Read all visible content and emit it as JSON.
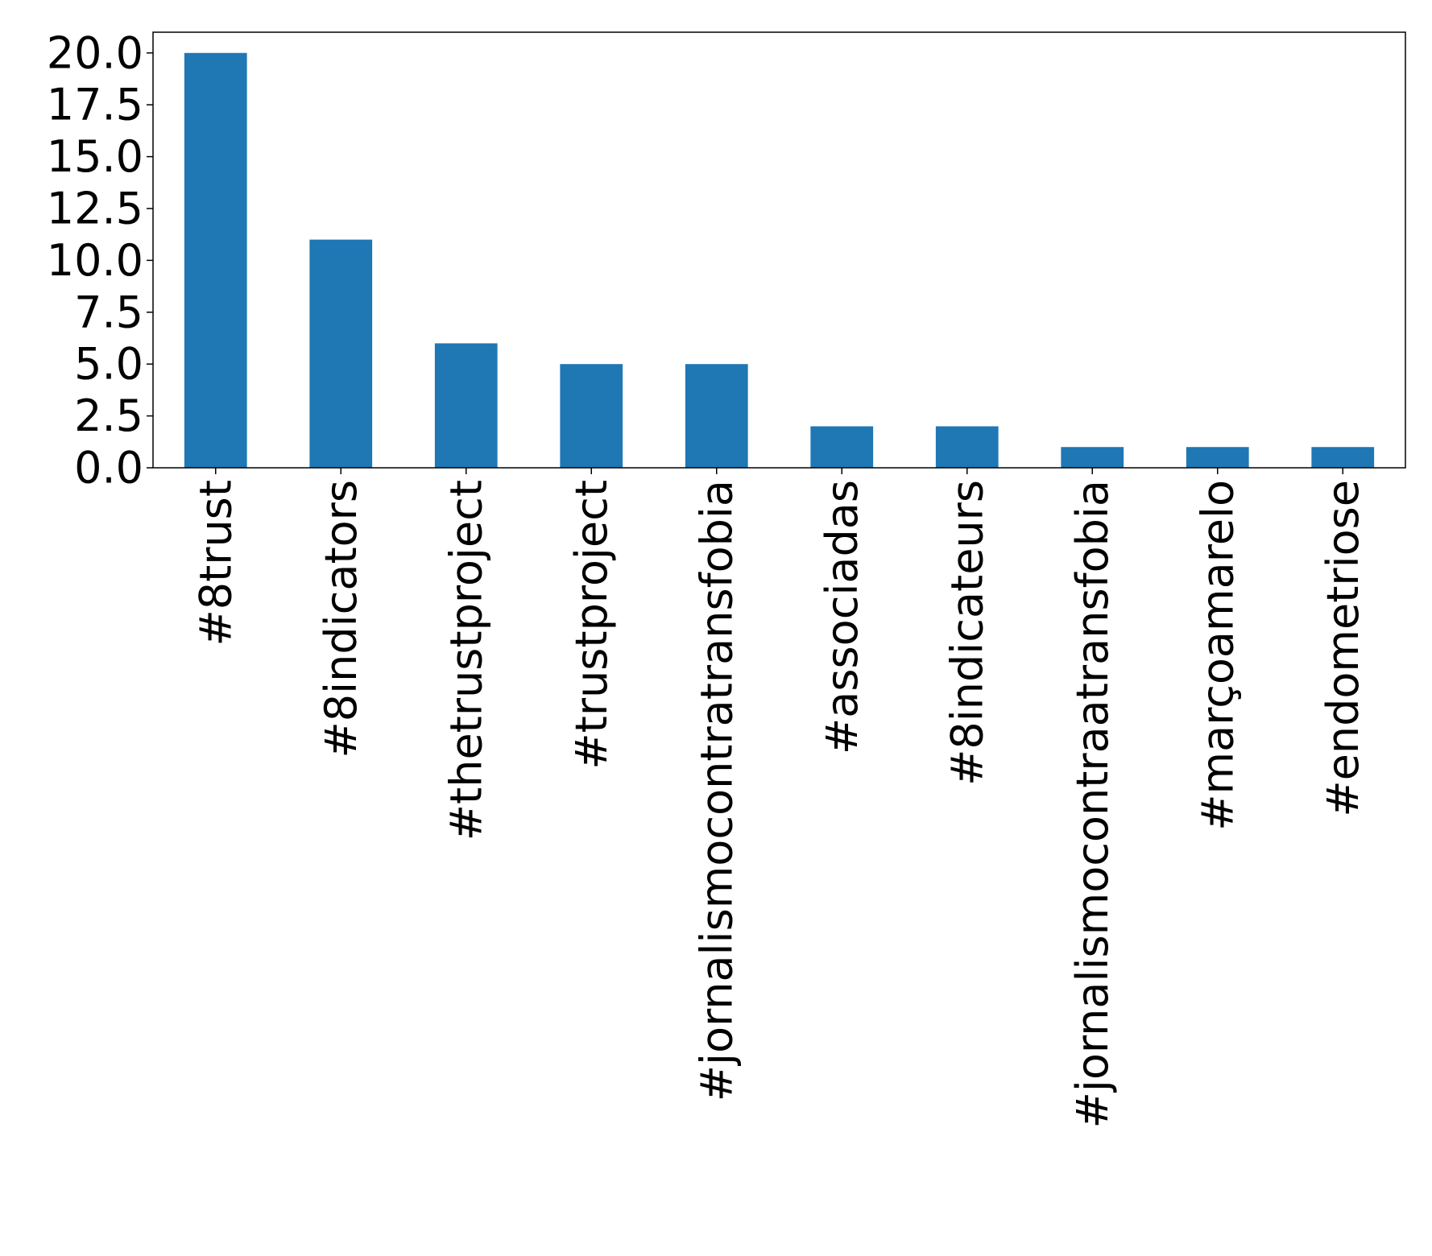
{
  "chart_data": {
    "type": "bar",
    "categories": [
      "#8trust",
      "#8indicators",
      "#thetrustproject",
      "#trustproject",
      "#jornalismocontratransfobia",
      "#associadas",
      "#8indicateurs",
      "#jornalismocontraatransfobia",
      "#marçoamarelo",
      "#endometriose"
    ],
    "values": [
      20,
      11,
      6,
      5,
      5,
      2,
      2,
      1,
      1,
      1
    ],
    "ylim": [
      0,
      21
    ],
    "yticks": [
      0.0,
      2.5,
      5.0,
      7.5,
      10.0,
      12.5,
      15.0,
      17.5,
      20.0
    ],
    "ytick_labels": [
      "0.0",
      "2.5",
      "5.0",
      "7.5",
      "10.0",
      "12.5",
      "15.0",
      "17.5",
      "20.0"
    ],
    "bar_color": "#1f77b4",
    "grid": false,
    "legend": "none"
  }
}
